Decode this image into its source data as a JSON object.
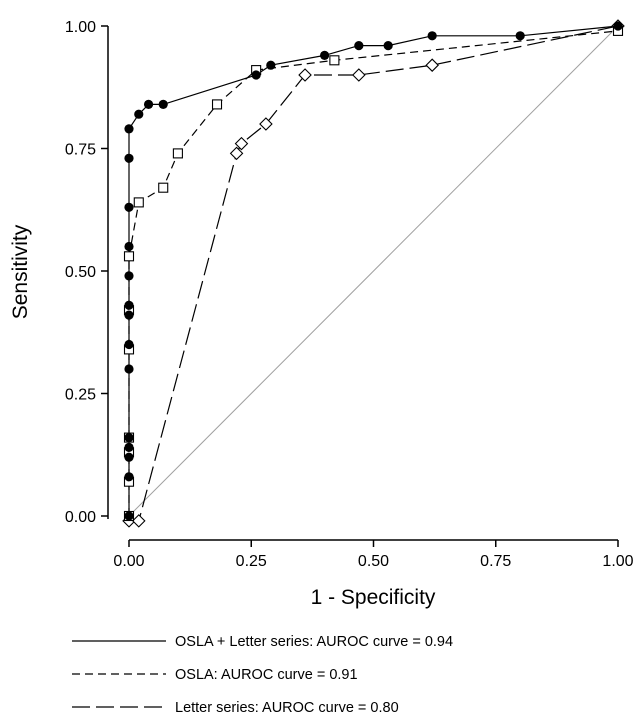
{
  "chart_data": {
    "type": "line",
    "title": "",
    "xlabel": "1 - Specificity",
    "ylabel": "Sensitivity",
    "xlim": [
      0,
      1
    ],
    "ylim": [
      0,
      1
    ],
    "x_ticks": [
      "0.00",
      "0.25",
      "0.50",
      "0.75",
      "1.00"
    ],
    "y_ticks": [
      "0.00",
      "0.25",
      "0.50",
      "0.75",
      "1.00"
    ],
    "grid": false,
    "legend_position": "bottom",
    "reference_line": {
      "x": [
        0,
        1
      ],
      "y": [
        0,
        1
      ],
      "color": "#a0a0a0"
    },
    "series": [
      {
        "name": "OSLA + Letter series: AUROC curve  = 0.94",
        "line_style": "solid",
        "marker": "filled-circle",
        "color": "#000000",
        "points": [
          [
            0,
            0
          ],
          [
            0,
            0.08
          ],
          [
            0,
            0.12
          ],
          [
            0,
            0.14
          ],
          [
            0,
            0.16
          ],
          [
            0,
            0.3
          ],
          [
            0,
            0.35
          ],
          [
            0,
            0.41
          ],
          [
            0,
            0.43
          ],
          [
            0,
            0.49
          ],
          [
            0,
            0.55
          ],
          [
            0,
            0.63
          ],
          [
            0,
            0.73
          ],
          [
            0,
            0.79
          ],
          [
            0.02,
            0.82
          ],
          [
            0.04,
            0.84
          ],
          [
            0.07,
            0.84
          ],
          [
            0.26,
            0.9
          ],
          [
            0.29,
            0.92
          ],
          [
            0.4,
            0.94
          ],
          [
            0.47,
            0.96
          ],
          [
            0.53,
            0.96
          ],
          [
            0.62,
            0.98
          ],
          [
            0.8,
            0.98
          ],
          [
            1,
            1
          ]
        ]
      },
      {
        "name": "OSLA: AUROC curve  = 0.91",
        "line_style": "dashed",
        "marker": "hollow-square",
        "color": "#000000",
        "points": [
          [
            0,
            0
          ],
          [
            0,
            0.07
          ],
          [
            0,
            0.13
          ],
          [
            0,
            0.16
          ],
          [
            0,
            0.34
          ],
          [
            0,
            0.42
          ],
          [
            0,
            0.53
          ],
          [
            0.02,
            0.64
          ],
          [
            0.07,
            0.67
          ],
          [
            0.1,
            0.74
          ],
          [
            0.18,
            0.84
          ],
          [
            0.26,
            0.91
          ],
          [
            0.42,
            0.93
          ],
          [
            1,
            0.99
          ]
        ]
      },
      {
        "name": "Letter series: AUROC curve  = 0.80",
        "line_style": "long-dash",
        "marker": "hollow-diamond",
        "color": "#000000",
        "points": [
          [
            0,
            -0.01
          ],
          [
            0.02,
            -0.01
          ],
          [
            0.22,
            0.74
          ],
          [
            0.23,
            0.76
          ],
          [
            0.28,
            0.8
          ],
          [
            0.36,
            0.9
          ],
          [
            0.47,
            0.9
          ],
          [
            0.62,
            0.92
          ],
          [
            1,
            1
          ]
        ]
      }
    ]
  }
}
